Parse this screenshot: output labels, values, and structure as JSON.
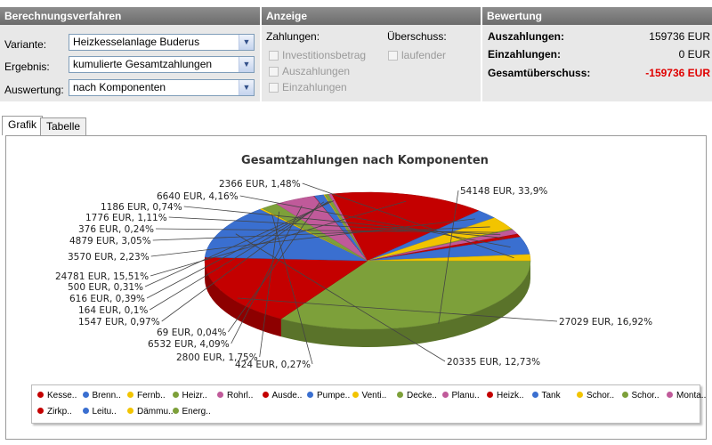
{
  "sections": {
    "berechnung": "Berechnungsverfahren",
    "anzeige": "Anzeige",
    "bewertung": "Bewertung"
  },
  "berechnung": {
    "variante_label": "Variante:",
    "variante_value": "Heizkesselanlage Buderus",
    "ergebnis_label": "Ergebnis:",
    "ergebnis_value": "kumulierte Gesamtzahlungen",
    "auswertung_label": "Auswertung:",
    "auswertung_value": "nach Komponenten"
  },
  "anzeige": {
    "zahlungen_label": "Zahlungen:",
    "ueberschuss_label": "Überschuss:",
    "investitionsbetrag": "Investitionsbetrag",
    "auszahlungen": "Auszahlungen",
    "einzahlungen": "Einzahlungen",
    "laufender": "laufender"
  },
  "bewertung": {
    "auszahlungen_label": "Auszahlungen:",
    "auszahlungen_value": "159736 EUR",
    "einzahlungen_label": "Einzahlungen:",
    "einzahlungen_value": "0 EUR",
    "gesamt_label": "Gesamtüberschuss:",
    "gesamt_value": "-159736 EUR",
    "gesamt_color": "#e00000"
  },
  "tabs": {
    "grafik": "Grafik",
    "tabelle": "Tabelle"
  },
  "chart_data": {
    "type": "pie",
    "title": "Gesamtzahlungen nach Komponenten",
    "slices": [
      {
        "legend": "Energ..",
        "label": "54148 EUR, 33,9%",
        "value": 54148,
        "color": "#7da03a"
      },
      {
        "legend": "Kesse..",
        "label": "27029 EUR, 16,92%",
        "value": 27029,
        "color": "#c40000"
      },
      {
        "legend": "Brenn..",
        "label": "20335 EUR, 12,73%",
        "value": 20335,
        "color": "#3a6fd0"
      },
      {
        "legend": "Fernb..",
        "label": "424 EUR, 0,27%",
        "value": 424,
        "color": "#f2c400"
      },
      {
        "legend": "Heizr..",
        "label": "2800 EUR, 1,75%",
        "value": 2800,
        "color": "#7da03a"
      },
      {
        "legend": "Rohrl..",
        "label": "6532 EUR, 4,09%",
        "value": 6532,
        "color": "#c05a9a"
      },
      {
        "legend": "Ausde..",
        "label": "69 EUR, 0,04%",
        "value": 69,
        "color": "#c40000"
      },
      {
        "legend": "Pumpe..",
        "label": "1547 EUR, 0,97%",
        "value": 1547,
        "color": "#3a6fd0"
      },
      {
        "legend": "Venti..",
        "label": "164 EUR, 0,1%",
        "value": 164,
        "color": "#f2c400"
      },
      {
        "legend": "Decke..",
        "label": "616 EUR, 0,39%",
        "value": 616,
        "color": "#7da03a"
      },
      {
        "legend": "Planu..",
        "label": "500 EUR, 0,31%",
        "value": 500,
        "color": "#c05a9a"
      },
      {
        "legend": "Heizk..",
        "label": "24781 EUR, 15,51%",
        "value": 24781,
        "color": "#c40000"
      },
      {
        "legend": "Tank",
        "label": "3570 EUR, 2,23%",
        "value": 3570,
        "color": "#3a6fd0"
      },
      {
        "legend": "Schor..",
        "label": "4879 EUR, 3,05%",
        "value": 4879,
        "color": "#f2c400"
      },
      {
        "legend": "Schor..",
        "label": "376 EUR, 0,24%",
        "value": 376,
        "color": "#7da03a"
      },
      {
        "legend": "Monta..",
        "label": "1776 EUR, 1,11%",
        "value": 1776,
        "color": "#c05a9a"
      },
      {
        "legend": "Zirkp..",
        "label": "1186 EUR, 0,74%",
        "value": 1186,
        "color": "#c40000"
      },
      {
        "legend": "Leitu..",
        "label": "6640 EUR, 4,16%",
        "value": 6640,
        "color": "#3a6fd0"
      },
      {
        "legend": "Dämmu..",
        "label": "2366 EUR, 1,48%",
        "value": 2366,
        "color": "#f2c400"
      }
    ],
    "legend_order": [
      "Kesse..",
      "Brenn..",
      "Fernb..",
      "Heizr..",
      "Rohrl..",
      "Ausde..",
      "Pumpe..",
      "Venti..",
      "Decke..",
      "Planu..",
      "Heizk..",
      "Tank",
      "Schor..",
      "Schor..",
      "Monta..",
      "Zirkp..",
      "Leitu..",
      "Dämmu..",
      "Energ.."
    ],
    "legend_colors": [
      "#c40000",
      "#3a6fd0",
      "#f2c400",
      "#7da03a",
      "#c05a9a",
      "#c40000",
      "#3a6fd0",
      "#f2c400",
      "#7da03a",
      "#c05a9a",
      "#c40000",
      "#3a6fd0",
      "#f2c400",
      "#7da03a",
      "#c05a9a",
      "#c40000",
      "#3a6fd0",
      "#f2c400",
      "#7da03a"
    ],
    "legend_position": "bottom"
  }
}
